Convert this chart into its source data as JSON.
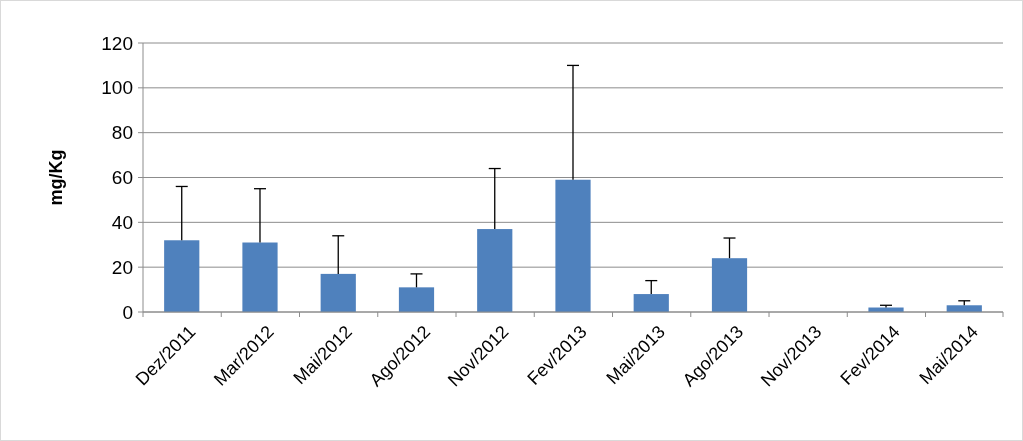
{
  "chart_data": {
    "type": "bar",
    "ylabel": "mg/Kg",
    "categories": [
      "Dez/2011",
      "Mar/2012",
      "Mai/2012",
      "Ago/2012",
      "Nov/2012",
      "Fev/2013",
      "Mai/2013",
      "Ago/2013",
      "Nov/2013",
      "Fev/2014",
      "Mai/2014"
    ],
    "values": [
      32,
      31,
      17,
      11,
      37,
      59,
      8,
      24,
      0,
      2,
      3
    ],
    "errors": [
      [
        32,
        56
      ],
      [
        31,
        55
      ],
      [
        17,
        34
      ],
      [
        11,
        17
      ],
      [
        37,
        64
      ],
      [
        59,
        110
      ],
      [
        8,
        14
      ],
      [
        24,
        33
      ],
      null,
      [
        2,
        3
      ],
      [
        3,
        5
      ]
    ],
    "color": "#4f81bd",
    "ylim": [
      0,
      120
    ],
    "yticks": [
      0,
      20,
      40,
      60,
      80,
      100,
      120
    ],
    "grid": "y"
  }
}
